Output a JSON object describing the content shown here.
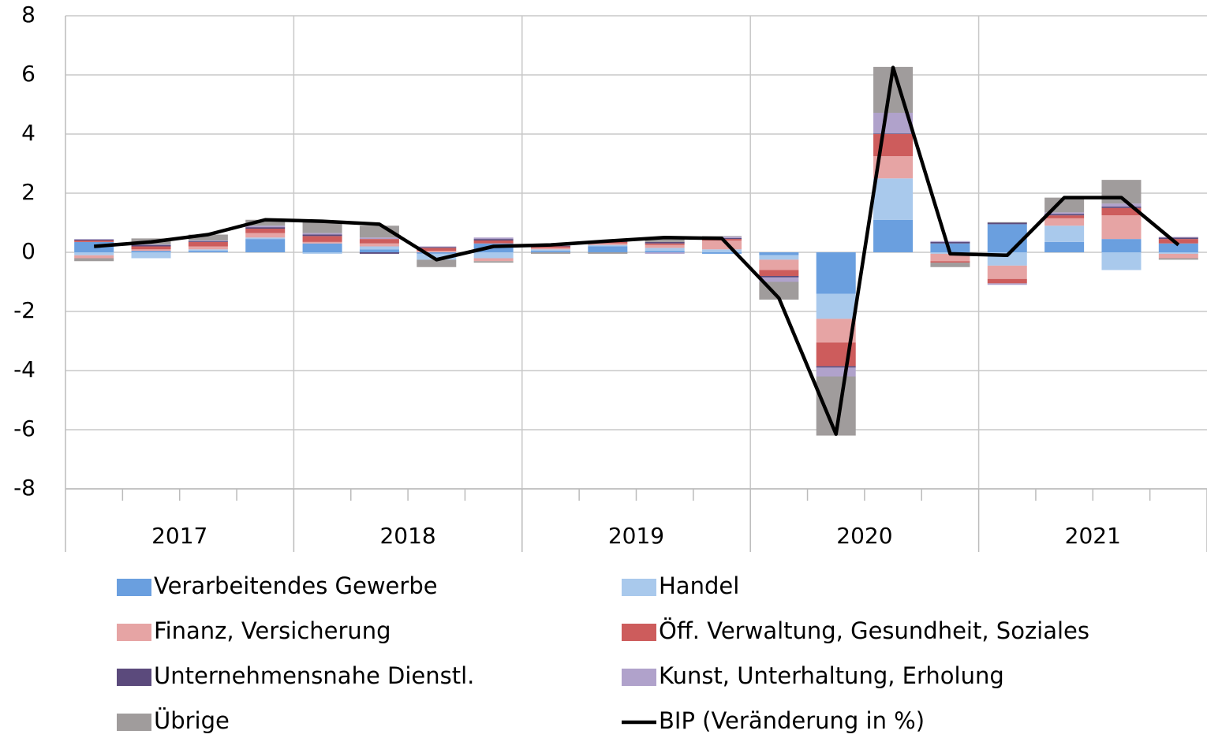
{
  "chart_data": {
    "type": "bar",
    "stacked": true,
    "categories": [
      null,
      null,
      null,
      null,
      null,
      null,
      null,
      null,
      null,
      null,
      null,
      null,
      null,
      null,
      null,
      null,
      null,
      null,
      null,
      null
    ],
    "category_groups": [
      "2017",
      "2018",
      "2019",
      "2020",
      "2021"
    ],
    "ylim": [
      -8,
      8
    ],
    "yticks": [
      -8,
      -6,
      -4,
      -2,
      0,
      2,
      4,
      6,
      8
    ],
    "grid": true,
    "series": [
      {
        "name": "Verarbeitendes Gewerbe",
        "color": "#6a9fdf",
        "values": [
          0.35,
          0.05,
          0.05,
          0.45,
          0.3,
          0.1,
          -0.05,
          0.3,
          0.05,
          0.2,
          0.05,
          -0.05,
          -0.1,
          -1.4,
          1.1,
          0.3,
          0.95,
          0.35,
          0.45,
          0.3
        ]
      },
      {
        "name": "Handel",
        "color": "#a9c9ec",
        "values": [
          -0.1,
          -0.2,
          0.05,
          0.05,
          -0.05,
          0.1,
          -0.2,
          -0.2,
          0.05,
          0.05,
          0.1,
          0.1,
          -0.15,
          -0.85,
          1.4,
          -0.05,
          -0.45,
          0.55,
          -0.6,
          -0.05
        ]
      },
      {
        "name": "Finanz, Versicherung",
        "color": "#e6a4a4",
        "values": [
          -0.1,
          0.05,
          0.1,
          0.15,
          0.05,
          0.1,
          0.05,
          -0.1,
          0.05,
          0.05,
          0.1,
          0.3,
          -0.35,
          -0.8,
          0.75,
          -0.25,
          -0.45,
          0.25,
          0.8,
          -0.15
        ]
      },
      {
        "name": "Öff. Verwaltung, Gesundheit, Soziales",
        "color": "#cd5c5c",
        "values": [
          0.05,
          0.1,
          0.15,
          0.15,
          0.2,
          0.15,
          0.1,
          0.1,
          0.05,
          0.05,
          0.05,
          0.05,
          -0.2,
          -0.8,
          0.75,
          -0.05,
          -0.15,
          0.1,
          0.25,
          0.15
        ]
      },
      {
        "name": "Unternehmensnahe Dienstl.",
        "color": "#5b4a7c",
        "values": [
          0.03,
          0.05,
          0.03,
          0.05,
          0.05,
          -0.05,
          0.03,
          0.05,
          0.02,
          0.02,
          0.05,
          0.03,
          -0.05,
          -0.05,
          0.02,
          0.05,
          0.05,
          0.05,
          0.05,
          0.05
        ]
      },
      {
        "name": "Kunst, Unterhaltung, Erholung",
        "color": "#b0a2cb",
        "values": [
          0.02,
          0.02,
          0.02,
          0.05,
          0.05,
          0.05,
          0.02,
          0.05,
          0.02,
          0.02,
          -0.05,
          0.05,
          -0.15,
          -0.3,
          0.7,
          0.03,
          -0.05,
          0.05,
          0.1,
          0.02
        ]
      },
      {
        "name": "Übrige",
        "color": "#a09c9c",
        "values": [
          -0.1,
          0.2,
          0.2,
          0.2,
          0.4,
          0.4,
          -0.25,
          -0.05,
          -0.05,
          -0.05,
          0.15,
          0.02,
          -0.6,
          -2.0,
          1.55,
          -0.15,
          0.02,
          0.5,
          0.8,
          -0.05
        ]
      },
      {
        "name": "BIP (Veränderung in %)",
        "type": "line",
        "color": "#000000",
        "values": [
          0.2,
          0.35,
          0.6,
          1.1,
          1.05,
          0.95,
          -0.25,
          0.2,
          0.25,
          0.38,
          0.5,
          0.47,
          -1.55,
          -6.15,
          6.25,
          -0.05,
          -0.1,
          1.85,
          1.85,
          0.25
        ]
      }
    ]
  }
}
